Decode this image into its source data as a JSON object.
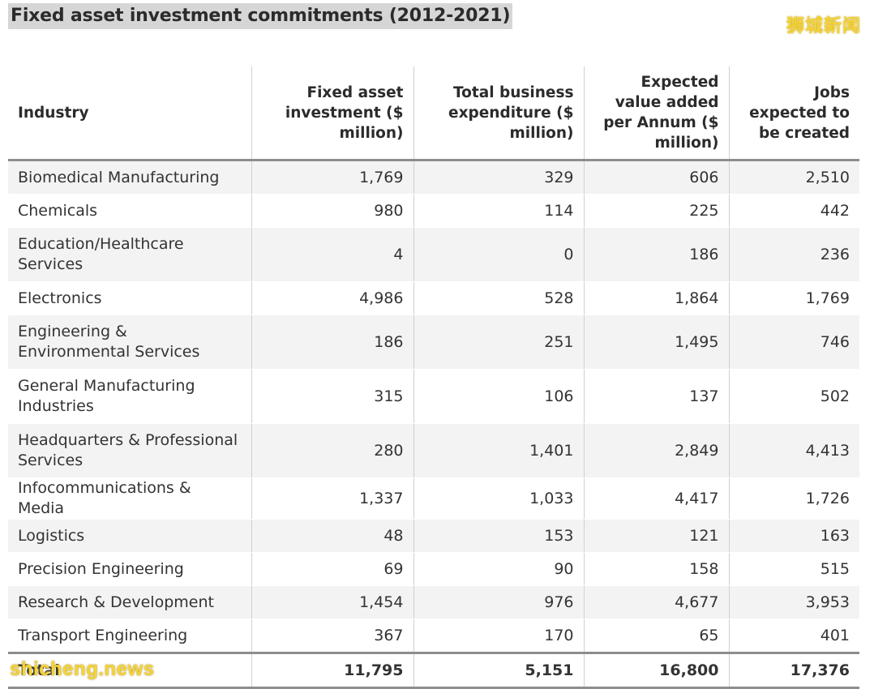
{
  "title": "Fixed asset investment commitments (2012-2021)",
  "watermark_top": "狮城新闻",
  "watermark_bottom": "shicheng.news",
  "columns": [
    "Industry",
    "Fixed asset investment ($ million)",
    "Total business expenditure ($ million)",
    "Expected value added per Annum ($ million)",
    "Jobs expected to be created"
  ],
  "rows": [
    {
      "industry": "Biomedical Manufacturing",
      "fai": "1,769",
      "tbe": "329",
      "eva": "606",
      "jobs": "2,510"
    },
    {
      "industry": "Chemicals",
      "fai": "980",
      "tbe": "114",
      "eva": "225",
      "jobs": "442"
    },
    {
      "industry": "Education/Healthcare Services",
      "fai": "4",
      "tbe": "0",
      "eva": "186",
      "jobs": "236"
    },
    {
      "industry": "Electronics",
      "fai": "4,986",
      "tbe": "528",
      "eva": "1,864",
      "jobs": "1,769"
    },
    {
      "industry": "Engineering & Environmental Services",
      "fai": "186",
      "tbe": "251",
      "eva": "1,495",
      "jobs": "746"
    },
    {
      "industry": "General Manufacturing Industries",
      "fai": "315",
      "tbe": "106",
      "eva": "137",
      "jobs": "502"
    },
    {
      "industry": "Headquarters & Professional Services",
      "fai": "280",
      "tbe": "1,401",
      "eva": "2,849",
      "jobs": "4,413"
    },
    {
      "industry": "Infocommunications & Media",
      "fai": "1,337",
      "tbe": "1,033",
      "eva": "4,417",
      "jobs": "1,726"
    },
    {
      "industry": "Logistics",
      "fai": "48",
      "tbe": "153",
      "eva": "121",
      "jobs": "163"
    },
    {
      "industry": "Precision Engineering",
      "fai": "69",
      "tbe": "90",
      "eva": "158",
      "jobs": "515"
    },
    {
      "industry": "Research & Development",
      "fai": "1,454",
      "tbe": "976",
      "eva": "4,677",
      "jobs": "3,953"
    },
    {
      "industry": "Transport Engineering",
      "fai": "367",
      "tbe": "170",
      "eva": "65",
      "jobs": "401"
    }
  ],
  "total": {
    "label": "Total",
    "fai": "11,795",
    "tbe": "5,151",
    "eva": "16,800",
    "jobs": "17,376"
  }
}
